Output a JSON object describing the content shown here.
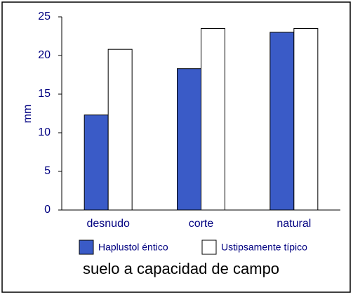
{
  "chart_data": {
    "type": "bar",
    "title": "suelo a capacidad de campo",
    "y_label": "mm",
    "categories": [
      "desnudo",
      "corte",
      "natural"
    ],
    "series": [
      {
        "name": "Haplustol éntico",
        "color": "#3a5bc7",
        "values": [
          12.3,
          18.3,
          23.0
        ]
      },
      {
        "name": "Ustipsamente típico",
        "color": "#ffffff",
        "values": [
          20.8,
          23.5,
          23.5
        ]
      }
    ],
    "ylim": [
      0,
      25
    ],
    "yticks": [
      0,
      5,
      10,
      15,
      20,
      25
    ]
  }
}
